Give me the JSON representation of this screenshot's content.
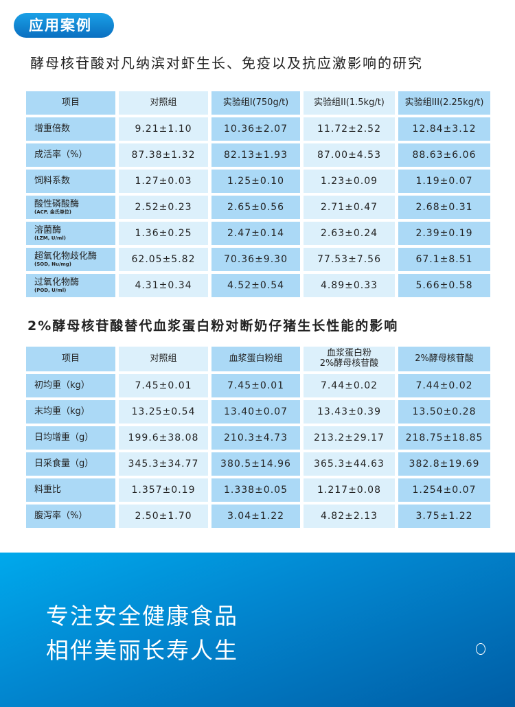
{
  "badge": "应用案例",
  "table1": {
    "title": "酵母核苷酸对凡纳滨对虾生长、免疫以及抗应激影响的研究",
    "headers": [
      "项目",
      "对照组",
      "实验组I(750g/t)",
      "实验组II(1.5kg/t)",
      "实验组III(2.25kg/t)"
    ],
    "rows": [
      {
        "item": "增重倍数",
        "sub": "",
        "values": [
          "9.21±1.10",
          "10.36±2.07",
          "11.72±2.52",
          "12.84±3.12"
        ]
      },
      {
        "item": "成活率（%）",
        "sub": "",
        "values": [
          "87.38±1.32",
          "82.13±1.93",
          "87.00±4.53",
          "88.63±6.06"
        ]
      },
      {
        "item": "饲料系数",
        "sub": "",
        "values": [
          "1.27±0.03",
          "1.25±0.10",
          "1.23±0.09",
          "1.19±0.07"
        ]
      },
      {
        "item": "酸性磷酸酶",
        "sub": "(ACP, 金氏单位)",
        "values": [
          "2.52±0.23",
          "2.65±0.56",
          "2.71±0.47",
          "2.68±0.31"
        ]
      },
      {
        "item": "溶菌酶",
        "sub": "(LZM, U/ml)",
        "values": [
          "1.36±0.25",
          "2.47±0.14",
          "2.63±0.24",
          "2.39±0.19"
        ]
      },
      {
        "item": "超氧化物歧化酶",
        "sub": "(SOD, Nu/mg)",
        "values": [
          "62.05±5.82",
          "70.36±9.30",
          "77.53±7.56",
          "67.1±8.51"
        ]
      },
      {
        "item": "过氧化物酶",
        "sub": "(POD, U/ml)",
        "values": [
          "4.31±0.34",
          "4.52±0.54",
          "4.89±0.33",
          "5.66±0.58"
        ]
      }
    ]
  },
  "table2": {
    "title": "2%酵母核苷酸替代血浆蛋白粉对断奶仔猪生长性能的影响",
    "headers": [
      "项目",
      "对照组",
      "血浆蛋白粉组",
      "血浆蛋白粉\n2%酵母核苷酸",
      "2%酵母核苷酸"
    ],
    "rows": [
      {
        "item": "初均重（kg）",
        "sub": "",
        "values": [
          "7.45±0.01",
          "7.45±0.01",
          "7.44±0.02",
          "7.44±0.02"
        ]
      },
      {
        "item": "末均重（kg）",
        "sub": "",
        "values": [
          "13.25±0.54",
          "13.40±0.07",
          "13.43±0.39",
          "13.50±0.28"
        ]
      },
      {
        "item": "日均增重（g）",
        "sub": "",
        "values": [
          "199.6±38.08",
          "210.3±4.73",
          "213.2±29.17",
          "218.75±18.85"
        ]
      },
      {
        "item": "日采食量（g）",
        "sub": "",
        "values": [
          "345.3±34.77",
          "380.5±14.96",
          "365.3±44.63",
          "382.8±19.69"
        ]
      },
      {
        "item": "料重比",
        "sub": "",
        "values": [
          "1.357±0.19",
          "1.338±0.05",
          "1.217±0.08",
          "1.254±0.07"
        ]
      },
      {
        "item": "腹泻率（%）",
        "sub": "",
        "values": [
          "2.50±1.70",
          "3.04±1.22",
          "4.82±2.13",
          "3.75±1.22"
        ]
      }
    ]
  },
  "banner": {
    "line1": "专注安全健康食品",
    "line2": "相伴美丽长寿人生",
    "icon": "logo-outline-icon"
  },
  "colors": {
    "dark_cell": "#abd9f6",
    "light_cell": "#dcf0fb",
    "banner": "#0288d1"
  }
}
